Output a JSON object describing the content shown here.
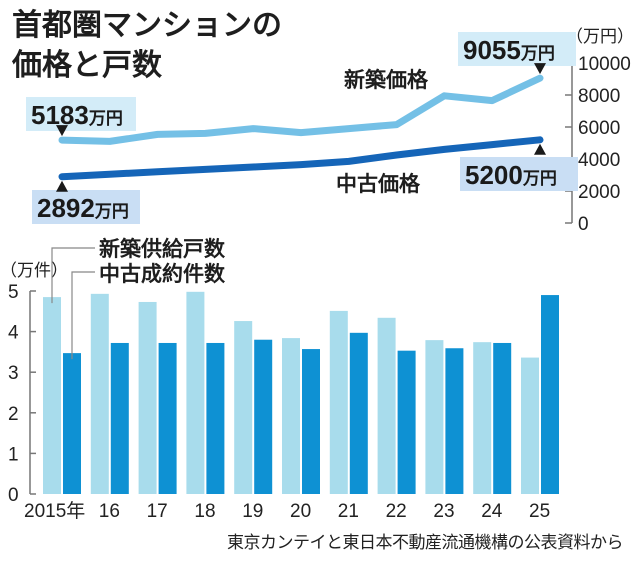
{
  "title": {
    "line1": "首都圏マンションの",
    "line2": "価格と戸数"
  },
  "source_note": "東京カンテイと東日本不動産流通機構の公表資料から",
  "colors": {
    "new_line": "#74c0e6",
    "used_line": "#1565b8",
    "new_bar": "#a8dcec",
    "used_bar": "#0e91d3",
    "new_callout_bg": "#d3ecf8",
    "used_callout_bg": "#c9def4",
    "axis": "#777777"
  },
  "chart_data": [
    {
      "type": "line",
      "title": "首都圏マンションの価格",
      "ylabel": "（万円）",
      "ylim": [
        0,
        10000
      ],
      "yticks": [
        "10000",
        "8000",
        "6000",
        "4000",
        "2000",
        "0"
      ],
      "ytick_values": [
        10000,
        8000,
        6000,
        4000,
        2000,
        0
      ],
      "axis_side": "right",
      "x": [
        2015,
        2016,
        2017,
        2018,
        2019,
        2020,
        2021,
        2022,
        2023,
        2024,
        2025
      ],
      "series": [
        {
          "name": "新築価格",
          "values": [
            5183,
            5100,
            5540,
            5600,
            5900,
            5650,
            5900,
            6150,
            7950,
            7650,
            9055
          ],
          "annotations": [
            {
              "x": 2015,
              "value": "5183",
              "unit": "万円"
            },
            {
              "x": 2025,
              "value": "9055",
              "unit": "万円"
            }
          ]
        },
        {
          "name": "中古価格",
          "values": [
            2892,
            3050,
            3200,
            3350,
            3500,
            3650,
            3850,
            4250,
            4600,
            4900,
            5200
          ],
          "annotations": [
            {
              "x": 2015,
              "value": "2892",
              "unit": "万円"
            },
            {
              "x": 2025,
              "value": "5200",
              "unit": "万円"
            }
          ]
        }
      ]
    },
    {
      "type": "bar",
      "title": "首都圏マンションの戸数",
      "ylabel": "（万件）",
      "ylim": [
        0,
        5
      ],
      "yticks": [
        "5",
        "4",
        "3",
        "2",
        "1",
        "0"
      ],
      "ytick_values": [
        5,
        4,
        3,
        2,
        1,
        0
      ],
      "categories": [
        "2015年",
        "16",
        "17",
        "18",
        "19",
        "20",
        "21",
        "22",
        "23",
        "24",
        "25"
      ],
      "legend": [
        "新築供給戸数",
        "中古成約件数"
      ],
      "legend_placement": "top-left",
      "series": [
        {
          "name": "新築供給戸数",
          "values": [
            4.85,
            4.93,
            4.73,
            4.98,
            4.26,
            3.84,
            4.51,
            4.34,
            3.79,
            3.74,
            3.36
          ]
        },
        {
          "name": "中古成約件数",
          "values": [
            3.47,
            3.72,
            3.72,
            3.72,
            3.8,
            3.57,
            3.97,
            3.53,
            3.59,
            3.72,
            4.9
          ]
        }
      ]
    }
  ]
}
